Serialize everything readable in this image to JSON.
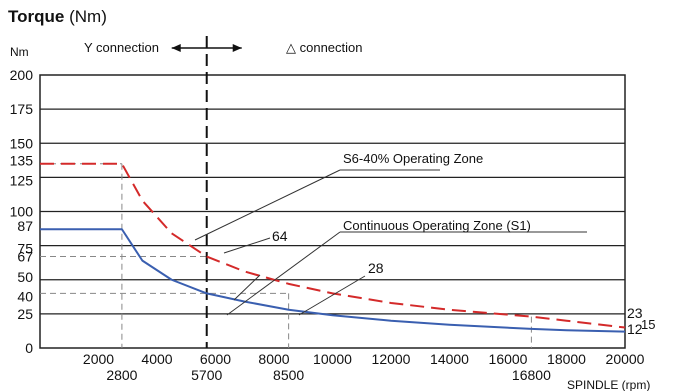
{
  "title": {
    "bold": "Torque",
    "unit": "(Nm)"
  },
  "chart_data": {
    "type": "line",
    "ylabel": "Nm",
    "xlabel": "SPINDLE (rpm)",
    "xlim": [
      0,
      20000
    ],
    "ylim": [
      0,
      200
    ],
    "x_ticks": [
      "2000",
      "4000",
      "6000",
      "8000",
      "10000",
      "12000",
      "14000",
      "16000",
      "18000",
      "20000"
    ],
    "x_ticks_extra": [
      "2800",
      "5700",
      "8500",
      "16800"
    ],
    "y_ticks": [
      "0",
      "25",
      "40",
      "50",
      "67",
      "75",
      "87",
      "100",
      "125",
      "135",
      "150",
      "175",
      "200"
    ],
    "top_labels": {
      "y_connection": "Y connection",
      "delta_connection": "△ connection"
    },
    "divider_rpm": 5700,
    "series": [
      {
        "color": "#d42a2a",
        "dashed": true,
        "x": [
          0,
          2800,
          3500,
          4500,
          5700,
          7000,
          8500,
          10000,
          12000,
          14000,
          16800,
          18000,
          20000
        ],
        "y": [
          135,
          135,
          108,
          84,
          67,
          56,
          47,
          40,
          33,
          28,
          23,
          20,
          15
        ]
      },
      {
        "color": "#3a5fb0",
        "dashed": false,
        "x": [
          0,
          2800,
          3500,
          4500,
          5700,
          7000,
          8500,
          10000,
          12000,
          14000,
          16800,
          18000,
          20000
        ],
        "y": [
          87,
          87,
          64,
          50,
          40,
          34,
          28,
          24,
          20,
          17,
          14,
          13,
          12
        ]
      }
    ],
    "annotations": [
      {
        "text": "S6-40%  Operating Zone"
      },
      {
        "text": "Continuous Operating Zone (S1)"
      },
      {
        "text": "64"
      },
      {
        "text": "28"
      },
      {
        "text": "23"
      },
      {
        "text": "12"
      },
      {
        "text": "15"
      }
    ]
  }
}
